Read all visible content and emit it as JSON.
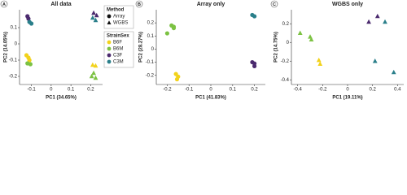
{
  "chart_data": [
    {
      "type": "scatter",
      "panel": "A",
      "title": "All data",
      "xlabel": "PC1 (34.65%)",
      "ylabel": "PC2 (14.05%)",
      "xlim": [
        -0.16,
        0.26
      ],
      "ylim": [
        -0.25,
        0.21
      ],
      "xticks": [
        -0.1,
        0.0,
        0.1,
        0.2
      ],
      "yticks": [
        0.1,
        0.0,
        -0.1,
        -0.2
      ],
      "legend": {
        "method": {
          "title": "Method",
          "entries": [
            {
              "label": "Array",
              "marker": "circle"
            },
            {
              "label": "WGBS",
              "marker": "triangle"
            }
          ]
        },
        "strainsex": {
          "title": "StrainSex",
          "entries": [
            {
              "label": "B6F",
              "color": "#f2d21b"
            },
            {
              "label": "B6M",
              "color": "#7cc243"
            },
            {
              "label": "C3F",
              "color": "#4b2a6e"
            },
            {
              "label": "C3M",
              "color": "#2a7f8a"
            }
          ]
        }
      },
      "series": [
        {
          "color": "#f2d21b",
          "marker": "circle",
          "x": [
            -0.125,
            -0.115,
            -0.11
          ],
          "values": [
            -0.07,
            -0.085,
            -0.1
          ]
        },
        {
          "color": "#7cc243",
          "marker": "circle",
          "x": [
            -0.12,
            -0.105
          ],
          "values": [
            -0.12,
            -0.125
          ]
        },
        {
          "color": "#4b2a6e",
          "marker": "circle",
          "x": [
            -0.12,
            -0.115
          ],
          "values": [
            0.17,
            0.155
          ]
        },
        {
          "color": "#2a7f8a",
          "marker": "circle",
          "x": [
            -0.11,
            -0.1
          ],
          "values": [
            0.135,
            0.125
          ]
        },
        {
          "color": "#f2d21b",
          "marker": "triangle",
          "x": [
            0.21,
            0.225
          ],
          "values": [
            -0.13,
            -0.135
          ]
        },
        {
          "color": "#7cc243",
          "marker": "triangle",
          "x": [
            0.215,
            0.205,
            0.225
          ],
          "values": [
            -0.18,
            -0.2,
            -0.21
          ]
        },
        {
          "color": "#4b2a6e",
          "marker": "triangle",
          "x": [
            0.215,
            0.23
          ],
          "values": [
            0.19,
            0.175
          ]
        },
        {
          "color": "#2a7f8a",
          "marker": "triangle",
          "x": [
            0.21,
            0.225
          ],
          "values": [
            0.16,
            0.145
          ]
        }
      ]
    },
    {
      "type": "scatter",
      "panel": "B",
      "title": "Array only",
      "xlabel": "PC1 (41.83%)",
      "ylabel": "PC2 (28.27%)",
      "xlim": [
        -0.25,
        0.25
      ],
      "ylim": [
        -0.27,
        0.3
      ],
      "xticks": [
        -0.2,
        -0.1,
        0.0,
        0.1,
        0.2
      ],
      "yticks": [
        0.2,
        0.1,
        0.0,
        -0.1,
        -0.2
      ],
      "series": [
        {
          "color": "#f2d21b",
          "marker": "circle",
          "x": [
            -0.16,
            -0.15,
            -0.155
          ],
          "values": [
            -0.19,
            -0.21,
            -0.23
          ]
        },
        {
          "color": "#7cc243",
          "marker": "circle",
          "x": [
            -0.18,
            -0.17,
            -0.17,
            -0.2
          ],
          "values": [
            0.18,
            0.17,
            0.16,
            0.12
          ]
        },
        {
          "color": "#4b2a6e",
          "marker": "circle",
          "x": [
            0.19,
            0.2,
            0.2
          ],
          "values": [
            -0.1,
            -0.11,
            -0.13
          ]
        },
        {
          "color": "#2a7f8a",
          "marker": "circle",
          "x": [
            0.19,
            0.2
          ],
          "values": [
            0.26,
            0.25
          ]
        }
      ]
    },
    {
      "type": "scatter",
      "panel": "C",
      "title": "WGBS only",
      "xlabel": "PC1 (19.11%)",
      "ylabel": "PC2 (14.75%)",
      "xlim": [
        -0.45,
        0.45
      ],
      "ylim": [
        -0.45,
        0.35
      ],
      "xticks": [
        -0.4,
        -0.2,
        0.0,
        0.2,
        0.4
      ],
      "yticks": [
        0.2,
        0.0,
        -0.2,
        -0.4
      ],
      "series": [
        {
          "color": "#7cc243",
          "marker": "triangle",
          "x": [
            -0.38,
            -0.3,
            -0.29
          ],
          "values": [
            0.1,
            0.06,
            0.03
          ]
        },
        {
          "color": "#f2d21b",
          "marker": "triangle",
          "x": [
            -0.23,
            -0.22
          ],
          "values": [
            -0.19,
            -0.23
          ]
        },
        {
          "color": "#4b2a6e",
          "marker": "triangle",
          "x": [
            0.17,
            0.24
          ],
          "values": [
            0.22,
            0.28
          ]
        },
        {
          "color": "#2a7f8a",
          "marker": "triangle",
          "x": [
            0.3,
            0.22,
            0.37
          ],
          "values": [
            0.22,
            -0.2,
            -0.32
          ]
        }
      ]
    }
  ]
}
